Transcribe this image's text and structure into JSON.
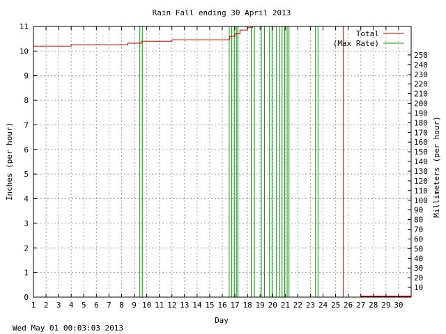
{
  "chart_data": {
    "type": "line",
    "title": "Rain Fall ending 30 April 2013",
    "xlabel": "Day",
    "ylabel": "Inches (per hour)",
    "y2label": "Millimeters (per hour)",
    "xlim": [
      1,
      31
    ],
    "ylim": [
      0,
      11
    ],
    "y2lim": [
      0,
      279.4
    ],
    "xticks": [
      "1",
      "2",
      "3",
      "4",
      "5",
      "6",
      "7",
      "8",
      "9",
      "10",
      "11",
      "12",
      "13",
      "14",
      "15",
      "16",
      "17",
      "18",
      "19",
      "20",
      "21",
      "22",
      "23",
      "24",
      "25",
      "26",
      "27",
      "28",
      "29",
      "30"
    ],
    "yticks": [
      "0",
      "1",
      "2",
      "3",
      "4",
      "5",
      "6",
      "7",
      "8",
      "9",
      "10",
      "11"
    ],
    "y2ticks": [
      "10",
      "20",
      "30",
      "40",
      "50",
      "60",
      "70",
      "80",
      "90",
      "100",
      "110",
      "120",
      "130",
      "140",
      "150",
      "160",
      "170",
      "180",
      "190",
      "200",
      "210",
      "220",
      "230",
      "240",
      "250"
    ],
    "grid": true,
    "legend_position": "top-right",
    "series": [
      {
        "name": "Total",
        "color": "#cc0000",
        "points": [
          [
            1,
            10.2
          ],
          [
            4,
            10.2
          ],
          [
            4,
            10.25
          ],
          [
            8.5,
            10.25
          ],
          [
            8.5,
            10.32
          ],
          [
            9.6,
            10.32
          ],
          [
            9.6,
            10.4
          ],
          [
            12,
            10.4
          ],
          [
            12,
            10.46
          ],
          [
            16.6,
            10.46
          ],
          [
            16.6,
            10.6
          ],
          [
            17,
            10.6
          ],
          [
            17,
            10.7
          ],
          [
            17.4,
            10.7
          ],
          [
            17.4,
            10.85
          ],
          [
            18,
            10.85
          ],
          [
            18,
            10.95
          ],
          [
            18.4,
            10.95
          ],
          [
            18.4,
            11
          ],
          [
            25.6,
            11
          ],
          [
            25.6,
            0
          ],
          [
            31,
            0
          ]
        ]
      },
      {
        "name": "(Max Rate)",
        "color": "#00a000",
        "spikes": [
          9.45,
          9.65,
          16.55,
          16.75,
          16.95,
          17.15,
          17.25,
          18.3,
          18.55,
          19.1,
          19.35,
          19.75,
          19.95,
          20.3,
          20.55,
          20.75,
          20.95,
          21.15,
          21.3,
          23.4,
          23.6
        ]
      }
    ]
  },
  "footer": {
    "timestamp": "Wed May 01 00:03:03 2013"
  }
}
